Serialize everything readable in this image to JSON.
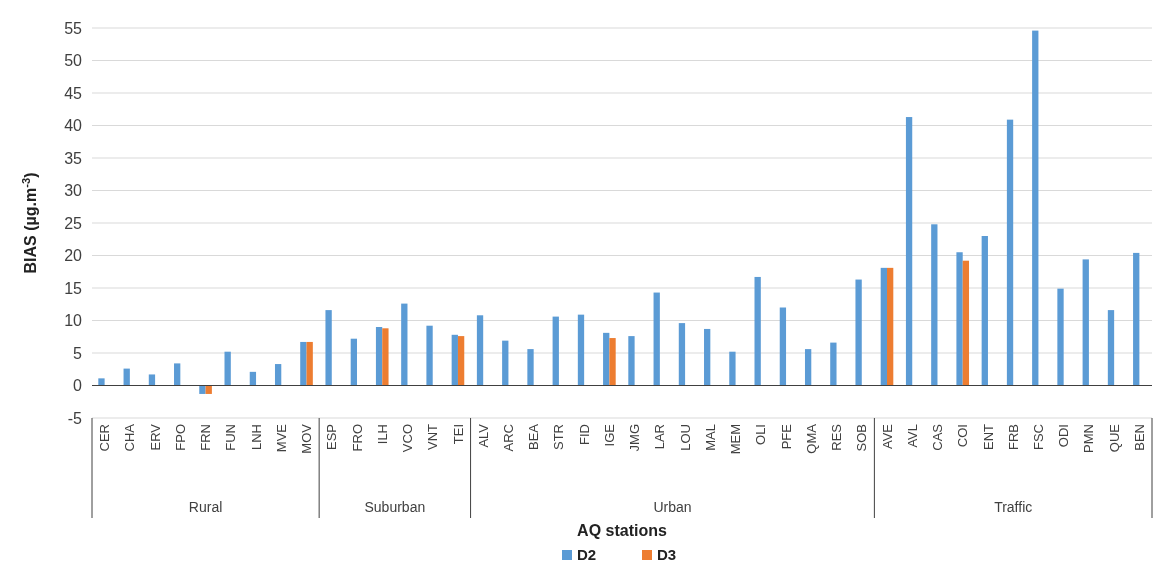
{
  "chart_data": {
    "type": "bar",
    "xlabel": "AQ stations",
    "ylabel": "BIAS (µg.m$^{-3}$)",
    "categories": [
      "CER",
      "CHA",
      "ERV",
      "FPO",
      "FRN",
      "FUN",
      "LNH",
      "MVE",
      "MOV",
      "ESP",
      "FRO",
      "ILH",
      "VCO",
      "VNT",
      "TEI",
      "ALV",
      "ARC",
      "BEA",
      "STR",
      "FID",
      "IGE",
      "JMG",
      "LAR",
      "LOU",
      "MAL",
      "MEM",
      "OLI",
      "PFE",
      "QMA",
      "RES",
      "SOB",
      "AVE",
      "AVL",
      "CAS",
      "COI",
      "ENT",
      "FRB",
      "FSC",
      "ODI",
      "PMN",
      "QUE",
      "BEN"
    ],
    "series": [
      {
        "name": "D2",
        "color": "#5b9bd5",
        "values": [
          1.1,
          2.6,
          1.7,
          3.4,
          -1.3,
          5.2,
          2.1,
          3.3,
          6.7,
          11.6,
          7.2,
          9,
          12.6,
          9.2,
          7.8,
          10.8,
          6.9,
          5.6,
          10.6,
          10.9,
          8.1,
          7.6,
          14.3,
          9.6,
          8.7,
          5.2,
          16.7,
          12,
          5.6,
          6.6,
          16.3,
          18.1,
          41.3,
          24.8,
          20.5,
          23,
          40.9,
          54.6,
          14.9,
          19.4,
          11.6,
          20.4
        ]
      },
      {
        "name": "D3",
        "color": "#ed7d31",
        "values": [
          null,
          null,
          null,
          null,
          -1.3,
          null,
          null,
          null,
          6.7,
          null,
          null,
          8.8,
          null,
          null,
          7.6,
          null,
          null,
          null,
          null,
          null,
          7.3,
          null,
          null,
          null,
          null,
          null,
          null,
          null,
          null,
          null,
          null,
          18.1,
          null,
          null,
          19.2,
          null,
          null,
          null,
          null,
          null,
          null,
          null
        ]
      }
    ],
    "annotations": [
      "Rural",
      "Suburban",
      "Urban",
      "Traffic"
    ],
    "ylim": [
      -5,
      55
    ],
    "yticks": [
      -5,
      0,
      5,
      10,
      15,
      20,
      25,
      30,
      35,
      40,
      45,
      50,
      55
    ],
    "grid": "y",
    "legend": "bottom"
  }
}
